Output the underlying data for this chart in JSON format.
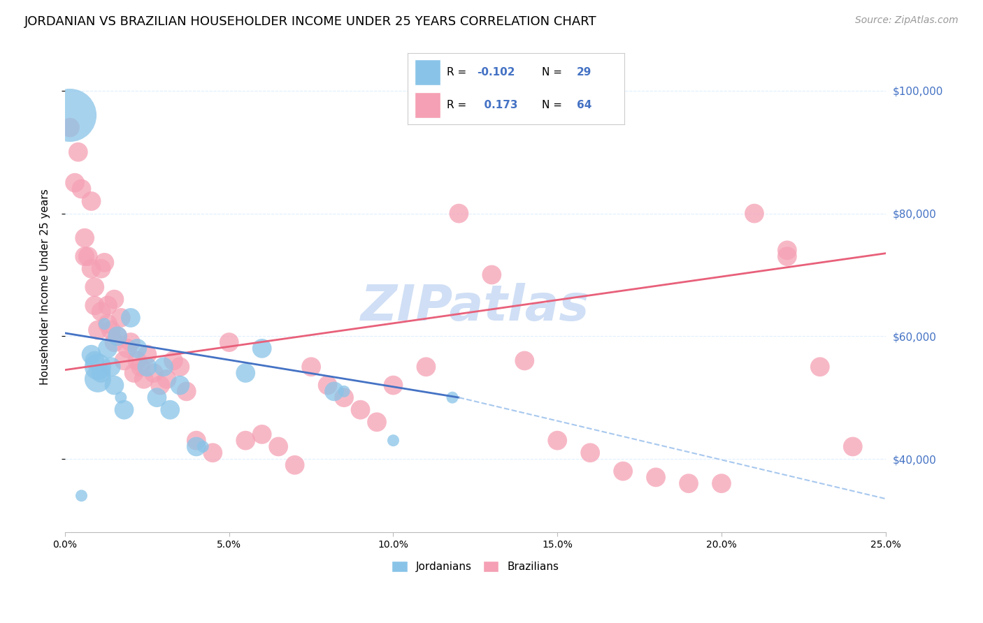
{
  "title": "JORDANIAN VS BRAZILIAN HOUSEHOLDER INCOME UNDER 25 YEARS CORRELATION CHART",
  "source": "Source: ZipAtlas.com",
  "ylabel": "Householder Income Under 25 years",
  "xlabel_ticks": [
    "0.0%",
    "5.0%",
    "10.0%",
    "15.0%",
    "20.0%",
    "25.0%"
  ],
  "xlabel_vals": [
    0.0,
    5.0,
    10.0,
    15.0,
    20.0,
    25.0
  ],
  "ylabel_ticks": [
    "$40,000",
    "$60,000",
    "$80,000",
    "$100,000"
  ],
  "ylabel_vals": [
    40000,
    60000,
    80000,
    100000
  ],
  "watermark": "ZIPatlas",
  "jordanian_x": [
    0.15,
    0.5,
    0.8,
    0.9,
    1.0,
    1.0,
    1.1,
    1.2,
    1.3,
    1.4,
    1.5,
    1.6,
    1.7,
    1.8,
    2.0,
    2.2,
    2.5,
    2.8,
    3.0,
    3.2,
    3.5,
    4.0,
    4.2,
    5.5,
    6.0,
    8.2,
    8.5,
    10.0,
    11.8
  ],
  "jordanian_y": [
    96000,
    34000,
    57000,
    56000,
    55000,
    53000,
    54000,
    62000,
    58000,
    55000,
    52000,
    60000,
    50000,
    48000,
    63000,
    58000,
    55000,
    50000,
    55000,
    48000,
    52000,
    42000,
    42000,
    54000,
    58000,
    51000,
    51000,
    43000,
    50000
  ],
  "jordanian_size": [
    600,
    30,
    80,
    80,
    150,
    150,
    80,
    30,
    80,
    80,
    80,
    80,
    30,
    80,
    80,
    80,
    80,
    80,
    80,
    80,
    80,
    80,
    30,
    80,
    80,
    80,
    30,
    30,
    30
  ],
  "brazilian_x": [
    0.15,
    0.3,
    0.5,
    0.6,
    0.7,
    0.8,
    0.9,
    1.0,
    1.1,
    1.2,
    1.3,
    1.4,
    1.5,
    1.6,
    1.7,
    1.8,
    1.9,
    2.0,
    2.1,
    2.2,
    2.3,
    2.5,
    2.7,
    2.9,
    3.1,
    3.3,
    3.5,
    3.7,
    4.0,
    4.5,
    5.0,
    5.5,
    6.0,
    6.5,
    7.0,
    7.5,
    8.0,
    8.5,
    9.0,
    9.5,
    10.0,
    11.0,
    12.0,
    13.0,
    14.0,
    15.0,
    16.0,
    17.0,
    18.0,
    19.0,
    20.0,
    21.0,
    22.0,
    23.0,
    24.0,
    0.4,
    0.6,
    0.8,
    0.9,
    1.1,
    1.3,
    1.5,
    2.4,
    22.0
  ],
  "brazilian_y": [
    94000,
    85000,
    84000,
    76000,
    73000,
    82000,
    65000,
    61000,
    71000,
    72000,
    65000,
    61000,
    66000,
    60000,
    63000,
    56000,
    58000,
    59000,
    54000,
    56000,
    55000,
    57000,
    54000,
    52000,
    53000,
    56000,
    55000,
    51000,
    43000,
    41000,
    59000,
    43000,
    44000,
    42000,
    39000,
    55000,
    52000,
    50000,
    48000,
    46000,
    52000,
    55000,
    80000,
    70000,
    56000,
    43000,
    41000,
    38000,
    37000,
    36000,
    36000,
    80000,
    74000,
    55000,
    42000,
    90000,
    73000,
    71000,
    68000,
    64000,
    62000,
    59000,
    53000,
    73000
  ],
  "brazilian_size": [
    80,
    80,
    80,
    80,
    80,
    80,
    80,
    80,
    80,
    80,
    80,
    80,
    80,
    80,
    80,
    80,
    80,
    80,
    80,
    80,
    80,
    80,
    80,
    80,
    80,
    80,
    80,
    80,
    80,
    80,
    80,
    80,
    80,
    80,
    80,
    80,
    80,
    80,
    80,
    80,
    80,
    80,
    80,
    80,
    80,
    80,
    80,
    80,
    80,
    80,
    80,
    80,
    80,
    80,
    80,
    80,
    80,
    80,
    80,
    80,
    80,
    80,
    80,
    80
  ],
  "blue_color": "#89C4E8",
  "pink_color": "#F5A0B4",
  "blue_line_color": "#4472C4",
  "pink_line_color": "#E8607A",
  "dashed_line_color": "#A8C8EE",
  "grid_color": "#DDEEFF",
  "background_color": "#FFFFFF",
  "title_fontsize": 13,
  "source_fontsize": 10,
  "watermark_color": "#D0DFF5",
  "blue_trend_x0": 0.0,
  "blue_trend_y0": 60500,
  "blue_trend_x1": 12.0,
  "blue_trend_y1": 50000,
  "blue_dash_x0": 12.0,
  "blue_dash_y0": 50000,
  "blue_dash_x1": 25.0,
  "blue_dash_y1": 33500,
  "pink_trend_x0": 0.0,
  "pink_trend_y0": 54500,
  "pink_trend_x1": 25.0,
  "pink_trend_y1": 73500,
  "axis_label_color": "#4472C4",
  "xlim": [
    0,
    25
  ],
  "ylim": [
    28000,
    108000
  ],
  "legend_r_blue": "-0.102",
  "legend_n_blue": "29",
  "legend_r_pink": "0.173",
  "legend_n_pink": "64"
}
